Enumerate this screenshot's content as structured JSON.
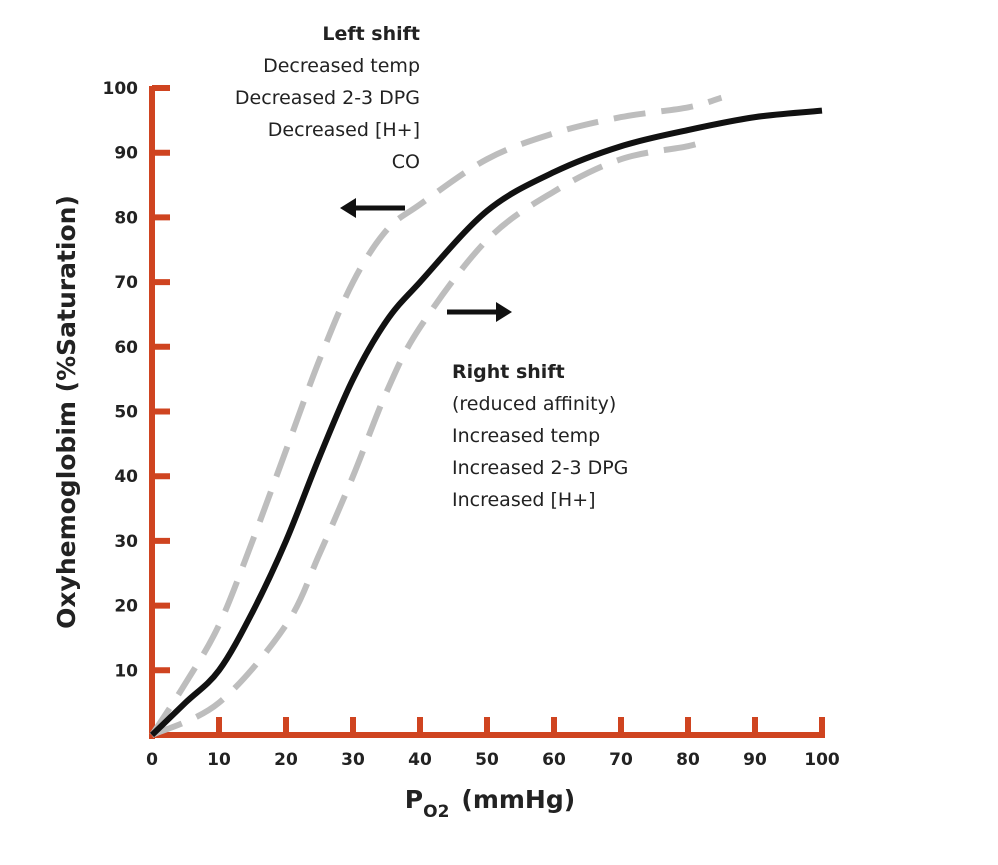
{
  "chart_data": {
    "type": "line",
    "xlabel": [
      "P",
      "O2",
      "(mmHg)"
    ],
    "ylabel": "Oxyhemoglobim  (%Saturation)",
    "xlim": [
      0,
      100
    ],
    "ylim": [
      0,
      100
    ],
    "xticks": [
      0,
      10,
      20,
      30,
      40,
      50,
      60,
      70,
      80,
      90,
      100
    ],
    "yticks": [
      10,
      20,
      30,
      40,
      50,
      60,
      70,
      80,
      90,
      100
    ],
    "axis_color": "#cf4420",
    "series": [
      {
        "color": "#bdbdbd",
        "dashed": true,
        "x": [
          0,
          5,
          10,
          15,
          20,
          25,
          30,
          35,
          40,
          50,
          60,
          70,
          80,
          85
        ],
        "values": [
          0,
          8,
          17,
          30,
          44,
          58,
          70,
          78,
          82,
          89,
          93,
          95.5,
          97,
          98.5
        ]
      },
      {
        "color": "#bdbdbd",
        "dashed": true,
        "x": [
          0,
          10,
          20,
          25,
          30,
          35,
          40,
          50,
          60,
          70,
          80,
          83
        ],
        "values": [
          0,
          5,
          17,
          28,
          40,
          53,
          63,
          76.5,
          84,
          89,
          91,
          92
        ]
      },
      {
        "color": "#111111",
        "dashed": false,
        "x": [
          0,
          5,
          10,
          15,
          20,
          25,
          30,
          35,
          40,
          50,
          60,
          70,
          80,
          90,
          100
        ],
        "values": [
          0,
          5,
          10,
          19,
          30,
          43,
          55,
          64,
          70,
          81,
          87,
          91,
          93.5,
          95.5,
          96.5
        ]
      }
    ],
    "annotations": [
      {
        "lines": [
          "Left shift",
          "Decreased temp",
          "Decreased 2-3 DPG",
          "Decreased [H+]",
          "CO"
        ]
      },
      {
        "lines": [
          "Right shift",
          "(reduced affinity)",
          "Increased temp",
          "Increased 2-3 DPG",
          "Increased [H+]"
        ]
      }
    ]
  }
}
